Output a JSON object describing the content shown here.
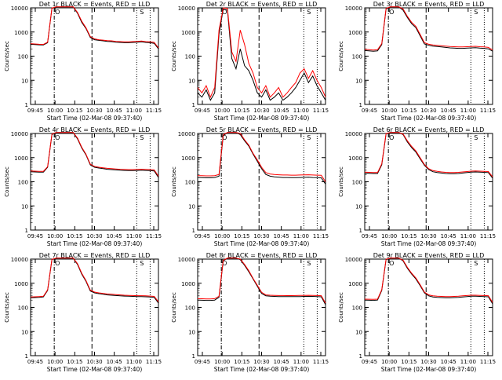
{
  "figure": {
    "ytick_labels": [
      "1",
      "10",
      "100",
      "1000",
      "10000"
    ],
    "ylabel": "Counts/sec",
    "xlabel": "Start Time (02-Mar-08 09:37:40)",
    "series_colors": {
      "events": "#000000",
      "lld": "#ff0000"
    },
    "marker_labels": [
      "O",
      "S"
    ]
  },
  "chart_data": [
    {
      "type": "line",
      "title": "Det 1r BLACK = Events, RED = LLD",
      "x_tick_labels": [
        "09:45",
        "10:00",
        "10:15",
        "10:30",
        "10:45",
        "11:00",
        "11:15"
      ],
      "x": [
        0,
        1,
        2,
        3,
        4,
        5,
        6,
        7,
        8,
        9,
        10,
        11,
        12,
        13,
        14,
        15,
        16,
        17,
        18,
        19,
        20,
        21,
        22,
        23,
        24,
        25,
        26,
        27,
        28,
        29,
        30
      ],
      "series": [
        {
          "name": "BLACK = Events",
          "values": [
            310,
            300,
            295,
            290,
            360,
            9500,
            12000,
            12000,
            12000,
            12000,
            12000,
            6000,
            2500,
            1400,
            600,
            480,
            450,
            430,
            410,
            400,
            380,
            370,
            360,
            360,
            370,
            380,
            390,
            370,
            360,
            340,
            200
          ]
        },
        {
          "name": "RED = LLD",
          "values": [
            330,
            320,
            310,
            305,
            380,
            9800,
            12000,
            12000,
            12000,
            12000,
            12000,
            6500,
            2800,
            1500,
            650,
            520,
            480,
            460,
            440,
            430,
            410,
            400,
            390,
            390,
            400,
            410,
            420,
            400,
            390,
            370,
            220
          ]
        }
      ],
      "y_scale": "log",
      "ylim": [
        1,
        10000
      ]
    },
    {
      "type": "line",
      "title": "Det 2r BLACK = Events, RED = LLD",
      "x_tick_labels": [
        "09:45",
        "10:00",
        "10:15",
        "10:30",
        "10:45",
        "11:00",
        "11:15"
      ],
      "x": [
        0,
        1,
        2,
        3,
        4,
        5,
        6,
        7,
        8,
        9,
        10,
        11,
        12,
        13,
        14,
        15,
        16,
        17,
        18,
        19,
        20,
        21,
        22,
        23,
        24,
        25,
        26,
        27,
        28,
        29,
        30
      ],
      "series": [
        {
          "name": "BLACK = Events",
          "values": [
            3,
            2,
            4,
            1.5,
            3,
            800,
            9000,
            8000,
            80,
            30,
            200,
            40,
            25,
            10,
            3,
            2,
            4,
            1.5,
            2,
            3,
            1.5,
            2,
            3,
            5,
            10,
            20,
            8,
            15,
            6,
            3,
            1.5
          ]
        },
        {
          "name": "RED = LLD",
          "values": [
            5,
            3,
            6,
            2,
            5,
            1200,
            10000,
            9500,
            150,
            60,
            1200,
            300,
            50,
            20,
            5,
            3,
            6,
            2,
            3,
            5,
            2,
            3,
            5,
            8,
            20,
            30,
            12,
            25,
            10,
            5,
            2
          ]
        }
      ],
      "y_scale": "log",
      "ylim": [
        1,
        10000
      ]
    },
    {
      "type": "line",
      "title": "Det 3r BLACK = Events, RED = LLD",
      "x_tick_labels": [
        "09:45",
        "10:00",
        "10:15",
        "10:30",
        "10:45",
        "11:00",
        "11:15"
      ],
      "x": [
        0,
        1,
        2,
        3,
        4,
        5,
        6,
        7,
        8,
        9,
        10,
        11,
        12,
        13,
        14,
        15,
        16,
        17,
        18,
        19,
        20,
        21,
        22,
        23,
        24,
        25,
        26,
        27,
        28,
        29,
        30
      ],
      "series": [
        {
          "name": "BLACK = Events",
          "values": [
            170,
            165,
            160,
            165,
            300,
            9000,
            12000,
            12000,
            12000,
            8000,
            4000,
            2200,
            1500,
            700,
            320,
            280,
            260,
            250,
            240,
            230,
            220,
            215,
            210,
            210,
            215,
            220,
            225,
            215,
            210,
            200,
            160
          ]
        },
        {
          "name": "RED = LLD",
          "values": [
            190,
            185,
            180,
            185,
            330,
            9500,
            12000,
            12000,
            12000,
            9000,
            4500,
            2500,
            1700,
            800,
            360,
            310,
            290,
            280,
            270,
            260,
            250,
            245,
            240,
            240,
            245,
            250,
            255,
            245,
            240,
            230,
            180
          ]
        }
      ],
      "y_scale": "log",
      "ylim": [
        1,
        10000
      ]
    },
    {
      "type": "line",
      "title": "Det 4r BLACK = Events, RED = LLD",
      "x_tick_labels": [
        "09:45",
        "10:00",
        "10:15",
        "10:30",
        "10:45",
        "11:00",
        "11:15"
      ],
      "x": [
        0,
        1,
        2,
        3,
        4,
        5,
        6,
        7,
        8,
        9,
        10,
        11,
        12,
        13,
        14,
        15,
        16,
        17,
        18,
        19,
        20,
        21,
        22,
        23,
        24,
        25,
        26,
        27,
        28,
        29,
        30
      ],
      "series": [
        {
          "name": "BLACK = Events",
          "values": [
            260,
            255,
            250,
            250,
            400,
            9000,
            12000,
            12000,
            12000,
            12000,
            12000,
            6000,
            2500,
            1300,
            500,
            400,
            370,
            350,
            330,
            320,
            310,
            300,
            295,
            290,
            290,
            295,
            300,
            295,
            290,
            280,
            150
          ]
        },
        {
          "name": "RED = LLD",
          "values": [
            280,
            275,
            270,
            270,
            420,
            9500,
            12000,
            12000,
            12000,
            12000,
            12000,
            6500,
            2700,
            1400,
            540,
            430,
            400,
            380,
            360,
            350,
            340,
            330,
            325,
            320,
            320,
            325,
            330,
            325,
            320,
            310,
            170
          ]
        }
      ],
      "y_scale": "log",
      "ylim": [
        1,
        10000
      ]
    },
    {
      "type": "line",
      "title": "Det 5r BLACK = Events, RED = LLD",
      "x_tick_labels": [
        "09:45",
        "10:00",
        "10:15",
        "10:30",
        "10:45",
        "11:00",
        "11:15"
      ],
      "x": [
        0,
        1,
        2,
        3,
        4,
        5,
        6,
        7,
        8,
        9,
        10,
        11,
        12,
        13,
        14,
        15,
        16,
        17,
        18,
        19,
        20,
        21,
        22,
        23,
        24,
        25,
        26,
        27,
        28,
        29,
        30
      ],
      "series": [
        {
          "name": "BLACK = Events",
          "values": [
            150,
            148,
            145,
            145,
            150,
            170,
            8000,
            12000,
            12000,
            12000,
            9000,
            5000,
            3000,
            1400,
            700,
            350,
            200,
            170,
            160,
            155,
            150,
            150,
            148,
            148,
            150,
            152,
            155,
            150,
            148,
            145,
            80
          ]
        },
        {
          "name": "RED = LLD",
          "values": [
            180,
            178,
            175,
            175,
            180,
            200,
            9000,
            12000,
            12000,
            12000,
            10000,
            5500,
            3300,
            1500,
            800,
            400,
            240,
            210,
            200,
            195,
            190,
            190,
            188,
            188,
            190,
            192,
            195,
            190,
            188,
            185,
            100
          ]
        }
      ],
      "y_scale": "log",
      "ylim": [
        1,
        10000
      ]
    },
    {
      "type": "line",
      "title": "Det 6r BLACK = Events, RED = LLD",
      "x_tick_labels": [
        "09:45",
        "10:00",
        "10:15",
        "10:30",
        "10:45",
        "11:00",
        "11:15"
      ],
      "x": [
        0,
        1,
        2,
        3,
        4,
        5,
        6,
        7,
        8,
        9,
        10,
        11,
        12,
        13,
        14,
        15,
        16,
        17,
        18,
        19,
        20,
        21,
        22,
        23,
        24,
        25,
        26,
        27,
        28,
        29,
        30
      ],
      "series": [
        {
          "name": "BLACK = Events",
          "values": [
            230,
            225,
            220,
            220,
            500,
            9500,
            12000,
            12000,
            12000,
            9000,
            4500,
            2600,
            1700,
            900,
            480,
            320,
            260,
            240,
            230,
            220,
            215,
            215,
            220,
            230,
            240,
            250,
            255,
            250,
            245,
            240,
            140
          ]
        },
        {
          "name": "RED = LLD",
          "values": [
            250,
            245,
            240,
            240,
            550,
            10000,
            12000,
            12000,
            12000,
            9500,
            5000,
            2900,
            1900,
            1000,
            520,
            350,
            290,
            270,
            255,
            245,
            240,
            240,
            245,
            255,
            265,
            275,
            280,
            275,
            270,
            265,
            160
          ]
        }
      ],
      "y_scale": "log",
      "ylim": [
        1,
        10000
      ]
    },
    {
      "type": "line",
      "title": "Det 7r BLACK = Events, RED = LLD",
      "x_tick_labels": [
        "09:45",
        "10:00",
        "10:15",
        "10:30",
        "10:45",
        "11:00",
        "11:15"
      ],
      "x": [
        0,
        1,
        2,
        3,
        4,
        5,
        6,
        7,
        8,
        9,
        10,
        11,
        12,
        13,
        14,
        15,
        16,
        17,
        18,
        19,
        20,
        21,
        22,
        23,
        24,
        25,
        26,
        27,
        28,
        29,
        30
      ],
      "series": [
        {
          "name": "BLACK = Events",
          "values": [
            250,
            255,
            260,
            270,
            500,
            9500,
            12000,
            12000,
            12000,
            12000,
            12000,
            6000,
            2400,
            1200,
            480,
            400,
            370,
            350,
            330,
            320,
            310,
            300,
            295,
            290,
            285,
            280,
            280,
            275,
            270,
            260,
            150
          ]
        },
        {
          "name": "RED = LLD",
          "values": [
            270,
            275,
            280,
            290,
            530,
            9800,
            12000,
            12000,
            12000,
            12000,
            12000,
            6500,
            2600,
            1300,
            520,
            430,
            400,
            380,
            360,
            350,
            340,
            330,
            320,
            315,
            310,
            305,
            305,
            300,
            295,
            285,
            170
          ]
        }
      ],
      "y_scale": "log",
      "ylim": [
        1,
        10000
      ]
    },
    {
      "type": "line",
      "title": "Det 8r BLACK = Events, RED = LLD",
      "x_tick_labels": [
        "09:45",
        "10:00",
        "10:15",
        "10:30",
        "10:45",
        "11:00",
        "11:15"
      ],
      "x": [
        0,
        1,
        2,
        3,
        4,
        5,
        6,
        7,
        8,
        9,
        10,
        11,
        12,
        13,
        14,
        15,
        16,
        17,
        18,
        19,
        20,
        21,
        22,
        23,
        24,
        25,
        26,
        27,
        28,
        29,
        30
      ],
      "series": [
        {
          "name": "BLACK = Events",
          "values": [
            200,
            198,
            195,
            195,
            200,
            260,
            8500,
            12000,
            12000,
            12000,
            9500,
            5500,
            3000,
            1500,
            750,
            380,
            300,
            290,
            285,
            280,
            280,
            278,
            278,
            280,
            282,
            285,
            288,
            285,
            280,
            275,
            130
          ]
        },
        {
          "name": "RED = LLD",
          "values": [
            230,
            228,
            225,
            225,
            230,
            290,
            9000,
            12000,
            12000,
            12000,
            10000,
            6000,
            3300,
            1600,
            820,
            420,
            330,
            320,
            315,
            310,
            310,
            308,
            308,
            310,
            312,
            315,
            318,
            315,
            310,
            305,
            150
          ]
        }
      ],
      "y_scale": "log",
      "ylim": [
        1,
        10000
      ]
    },
    {
      "type": "line",
      "title": "Det 9r BLACK = Events, RED = LLD",
      "x_tick_labels": [
        "09:45",
        "10:00",
        "10:15",
        "10:30",
        "10:45",
        "11:00",
        "11:15"
      ],
      "x": [
        0,
        1,
        2,
        3,
        4,
        5,
        6,
        7,
        8,
        9,
        10,
        11,
        12,
        13,
        14,
        15,
        16,
        17,
        18,
        19,
        20,
        21,
        22,
        23,
        24,
        25,
        26,
        27,
        28,
        29,
        30
      ],
      "series": [
        {
          "name": "BLACK = Events",
          "values": [
            200,
            198,
            195,
            200,
            500,
            9500,
            12000,
            12000,
            12000,
            8500,
            4200,
            2400,
            1500,
            800,
            400,
            300,
            270,
            260,
            255,
            250,
            250,
            255,
            260,
            270,
            280,
            290,
            290,
            285,
            280,
            275,
            140
          ]
        },
        {
          "name": "RED = LLD",
          "values": [
            220,
            218,
            215,
            220,
            540,
            10000,
            12000,
            12000,
            12000,
            9000,
            4600,
            2600,
            1650,
            880,
            430,
            330,
            300,
            290,
            285,
            280,
            280,
            285,
            290,
            300,
            310,
            320,
            320,
            315,
            310,
            305,
            160
          ]
        }
      ],
      "y_scale": "log",
      "ylim": [
        1,
        10000
      ]
    }
  ]
}
